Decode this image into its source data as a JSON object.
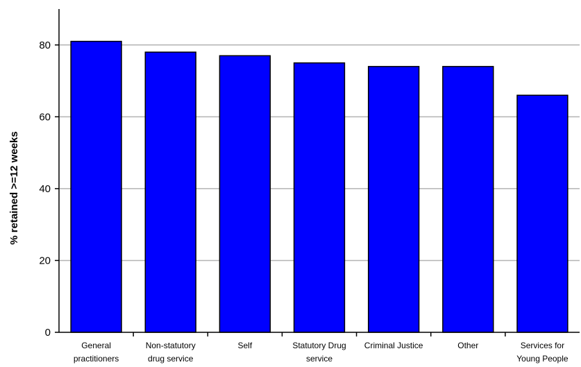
{
  "chart_data": {
    "type": "bar",
    "title": "",
    "xlabel": "",
    "ylabel": "% retained >=12 weeks",
    "ylim": [
      0,
      90
    ],
    "yticks": [
      0,
      20,
      40,
      60,
      80
    ],
    "grid": true,
    "bar_color": "#0000ff",
    "categories": [
      [
        "General",
        "practitioners"
      ],
      [
        "Non-statutory",
        "drug service"
      ],
      [
        "Self"
      ],
      [
        "Statutory Drug",
        "service"
      ],
      [
        "Criminal Justice"
      ],
      [
        "Other"
      ],
      [
        "Services for",
        "Young People"
      ]
    ],
    "values": [
      81,
      78,
      77,
      75,
      74,
      74,
      66
    ]
  }
}
